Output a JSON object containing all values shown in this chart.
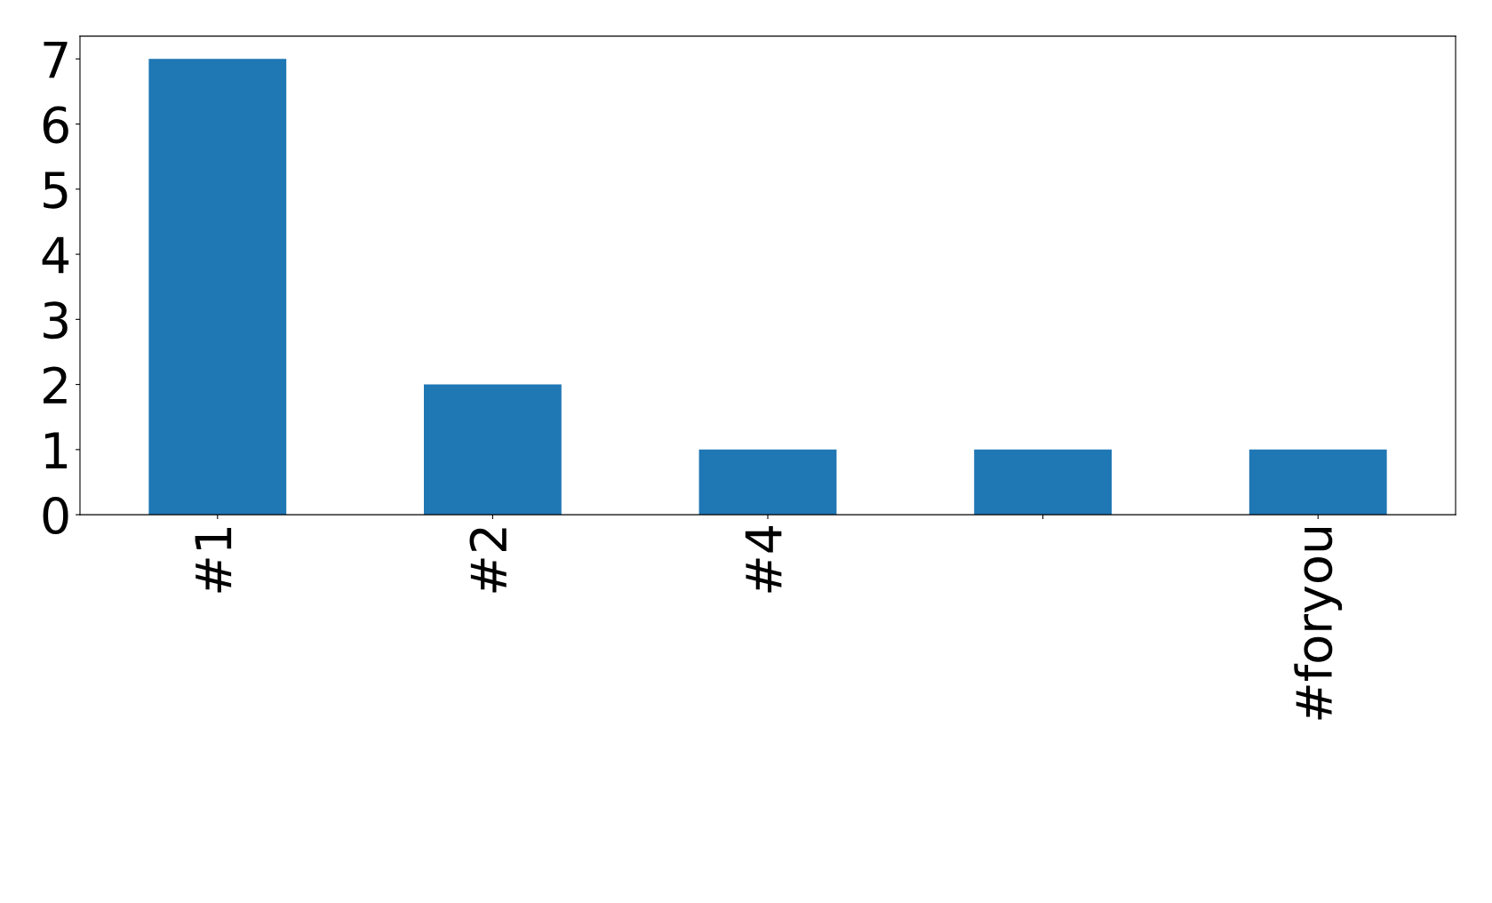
{
  "chart_data": {
    "type": "bar",
    "categories": [
      "#1",
      "#2",
      "#4",
      null,
      "#foryou"
    ],
    "values": [
      7,
      2,
      1,
      1,
      1
    ],
    "color": "#1f77b4",
    "ylim": [
      0,
      7.35
    ],
    "yticks": [
      0,
      1,
      2,
      3,
      4,
      5,
      6,
      7
    ],
    "grid": false,
    "legend": false
  }
}
